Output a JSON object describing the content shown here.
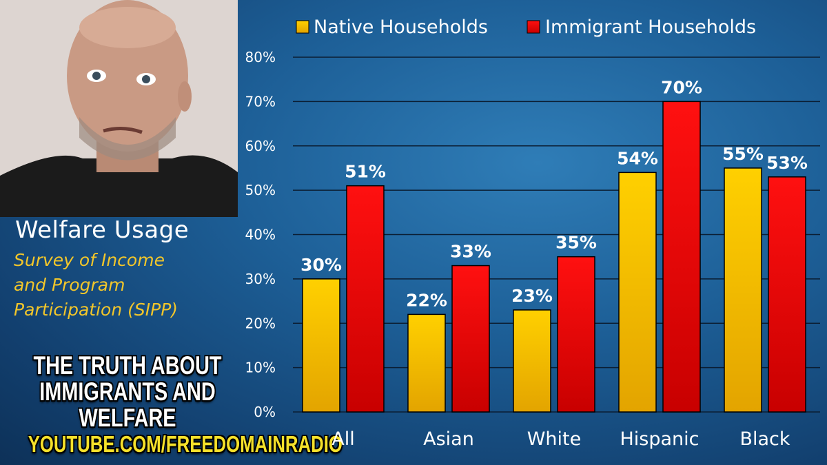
{
  "sidebar": {
    "title": "Welfare Usage",
    "subtitle_lines": [
      "Survey of Income",
      "and Program",
      "Participation (SIPP)"
    ]
  },
  "banner": {
    "line1": "THE TRUTH ABOUT",
    "line2": "IMMIGRANTS AND WELFARE",
    "url": "YOUTUBE.COM/FREEDOMAINRADIO"
  },
  "colors": {
    "native": "#f5c200",
    "immigrant": "#e00000",
    "subtitle": "#f2c62a",
    "url": "#f5e12a"
  },
  "chart_data": {
    "type": "bar",
    "categories": [
      "All",
      "Asian",
      "White",
      "Hispanic",
      "Black"
    ],
    "series": [
      {
        "name": "Native Households",
        "values": [
          30,
          22,
          23,
          54,
          55
        ],
        "labels": [
          "30%",
          "22%",
          "23%",
          "54%",
          "55%"
        ]
      },
      {
        "name": "Immigrant Households",
        "values": [
          51,
          33,
          35,
          70,
          53
        ],
        "labels": [
          "51%",
          "33%",
          "35%",
          "70%",
          "53%"
        ]
      }
    ],
    "ylim": [
      0,
      80
    ],
    "yticks": [
      "0%",
      "10%",
      "20%",
      "30%",
      "40%",
      "50%",
      "60%",
      "70%",
      "80%"
    ],
    "grid": true,
    "legend_position": "top"
  }
}
